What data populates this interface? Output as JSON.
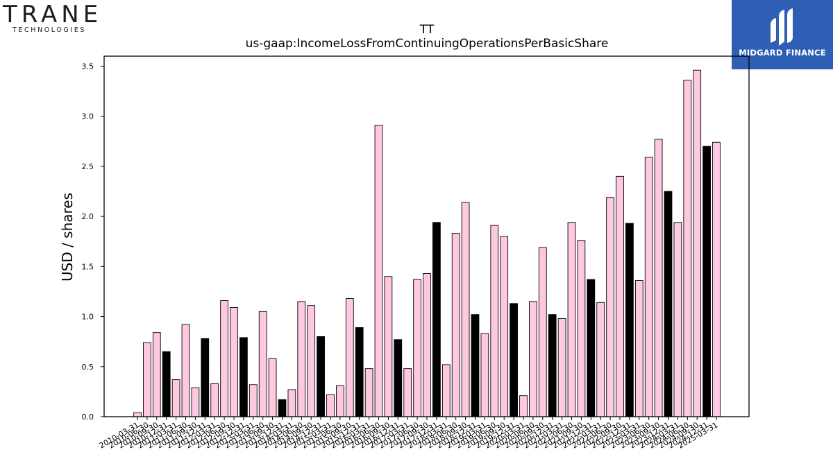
{
  "branding": {
    "left_logo_word": "TRANE",
    "left_logo_sub": "TECHNOLOGIES",
    "right_logo_text": "MIDGARD FINANCE",
    "right_logo_bg": "#2f5fb4"
  },
  "colors": {
    "bar_pink": "#ffc8e1",
    "bar_black": "#000000",
    "bar_stroke": "#000000"
  },
  "chart_data": {
    "type": "bar",
    "title": "TT",
    "subtitle": "us-gaap:IncomeLossFromContinuingOperationsPerBasicShare",
    "xlabel": "",
    "ylabel": "USD / shares",
    "ylim": [
      0,
      3.6
    ],
    "yticks": [
      "0.0",
      "0.5",
      "1.0",
      "1.5",
      "2.0",
      "2.5",
      "3.0",
      "3.5"
    ],
    "grid": false,
    "legend": "none",
    "categories": [
      "2010-03-31",
      "2010-06-30",
      "2010-09-30",
      "2010-12-31",
      "2011-03-31",
      "2011-06-30",
      "2011-09-30",
      "2011-12-31",
      "2012-03-31",
      "2012-06-30",
      "2012-09-30",
      "2012-12-31",
      "2013-03-31",
      "2013-06-30",
      "2013-09-30",
      "2013-12-31",
      "2014-03-31",
      "2014-06-30",
      "2014-09-30",
      "2014-12-31",
      "2015-03-31",
      "2015-06-30",
      "2015-09-30",
      "2015-12-31",
      "2016-03-31",
      "2016-06-30",
      "2016-09-30",
      "2016-12-31",
      "2017-03-31",
      "2017-06-30",
      "2017-09-30",
      "2017-12-31",
      "2018-03-31",
      "2018-06-30",
      "2018-09-30",
      "2018-12-31",
      "2019-03-31",
      "2019-06-30",
      "2019-09-30",
      "2019-12-31",
      "2020-03-31",
      "2020-06-30",
      "2020-09-30",
      "2020-12-31",
      "2021-03-31",
      "2021-06-30",
      "2021-09-30",
      "2021-12-31",
      "2022-03-31",
      "2022-06-30",
      "2022-09-30",
      "2022-12-31",
      "2023-03-31",
      "2023-06-30",
      "2023-09-30",
      "2023-12-31",
      "2024-03-31",
      "2024-06-30",
      "2024-09-30",
      "2024-12-31",
      "2025-03-31"
    ],
    "values": [
      0.04,
      0.74,
      0.84,
      0.65,
      0.37,
      0.92,
      0.29,
      0.78,
      0.33,
      1.16,
      1.09,
      0.79,
      0.32,
      1.05,
      0.58,
      0.17,
      0.27,
      1.15,
      1.11,
      0.8,
      0.22,
      0.31,
      1.18,
      0.89,
      0.48,
      2.91,
      1.4,
      0.77,
      0.48,
      1.37,
      1.43,
      1.94,
      0.52,
      1.83,
      2.14,
      1.02,
      0.83,
      1.91,
      1.8,
      1.13,
      0.21,
      1.15,
      1.69,
      1.02,
      0.98,
      1.94,
      1.76,
      1.37,
      1.14,
      2.19,
      2.4,
      1.93,
      1.36,
      2.59,
      2.77,
      2.25,
      1.94,
      3.36,
      3.46,
      2.7,
      2.74
    ],
    "highlight": [
      false,
      false,
      false,
      true,
      false,
      false,
      false,
      true,
      false,
      false,
      false,
      true,
      false,
      false,
      false,
      true,
      false,
      false,
      false,
      true,
      false,
      false,
      false,
      true,
      false,
      false,
      false,
      true,
      false,
      false,
      false,
      true,
      false,
      false,
      false,
      true,
      false,
      false,
      false,
      true,
      false,
      false,
      false,
      true,
      false,
      false,
      false,
      true,
      false,
      false,
      false,
      true,
      false,
      false,
      false,
      true,
      false,
      false,
      false,
      true,
      false
    ]
  }
}
